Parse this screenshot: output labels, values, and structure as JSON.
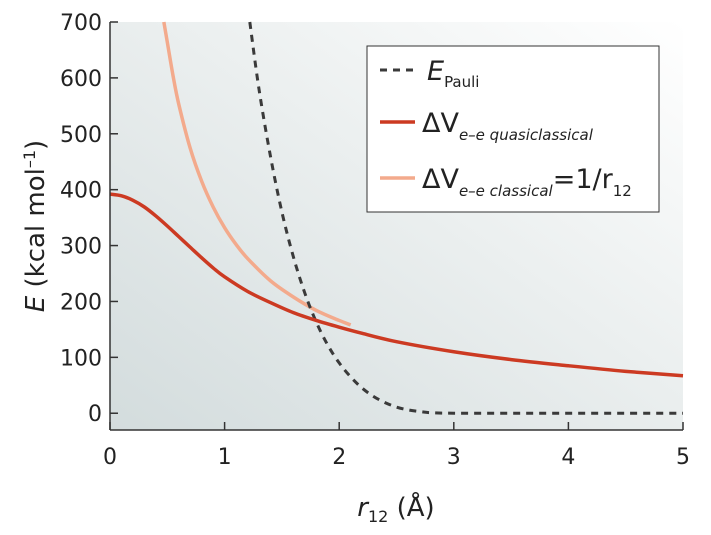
{
  "chart_data": {
    "type": "line",
    "xlabel": {
      "var": "r",
      "sub": "12",
      "unit": " (Å)"
    },
    "ylabel": {
      "var": "E",
      "unit": " (kcal mol",
      "sup": "–1",
      "close": ")"
    },
    "xlim": [
      0,
      5
    ],
    "ylim": [
      -30,
      700
    ],
    "x_ticks": [
      "0",
      "1",
      "2",
      "3",
      "4",
      "5"
    ],
    "y_ticks": [
      "0",
      "100",
      "200",
      "300",
      "400",
      "500",
      "600",
      "700"
    ],
    "grid": false,
    "legend_position": "top-right",
    "series": [
      {
        "key": "pauli",
        "legend": {
          "main": "E",
          "sub": "Pauli",
          "rest": ""
        },
        "color": "#3a3a3a",
        "style": "dashed",
        "x": [
          1.22,
          1.3,
          1.4,
          1.5,
          1.6,
          1.7,
          1.8,
          1.9,
          2.0,
          2.1,
          2.2,
          2.3,
          2.4,
          2.5,
          2.6,
          2.7,
          2.8,
          3.0,
          3.5,
          4.0,
          4.5,
          5.0
        ],
        "y": [
          700,
          580,
          460,
          360,
          280,
          215,
          163,
          122,
          90,
          65,
          45,
          30,
          19,
          11,
          6,
          3,
          1,
          0,
          0,
          0,
          0,
          0
        ]
      },
      {
        "key": "quasiclassical",
        "legend": {
          "main": "ΔV",
          "sub": "e–e quasiclassical",
          "rest": ""
        },
        "color": "#cc3a22",
        "style": "solid",
        "x": [
          0,
          0.1,
          0.2,
          0.3,
          0.4,
          0.5,
          0.6,
          0.7,
          0.8,
          0.9,
          1.0,
          1.2,
          1.4,
          1.6,
          1.8,
          2.0,
          2.2,
          2.5,
          3.0,
          3.5,
          4.0,
          4.5,
          5.0
        ],
        "y": [
          392,
          389,
          381,
          369,
          353,
          335,
          316,
          297,
          278,
          260,
          244,
          218,
          198,
          180,
          166,
          154,
          143,
          128,
          110,
          96,
          85,
          75,
          67
        ]
      },
      {
        "key": "classical",
        "legend": {
          "main": "ΔV",
          "sub": "e–e classical",
          "rest": "=1/r",
          "rest_sub": "12"
        },
        "color": "#f3aa8c",
        "style": "solid",
        "x": [
          0.47,
          0.5,
          0.55,
          0.6,
          0.7,
          0.8,
          0.9,
          1.0,
          1.1,
          1.2,
          1.4,
          1.6,
          1.8,
          2.0,
          2.1
        ],
        "y": [
          700,
          664,
          604,
          553,
          474,
          415,
          369,
          332,
          302,
          277,
          237,
          208,
          184,
          166,
          158
        ]
      }
    ]
  }
}
